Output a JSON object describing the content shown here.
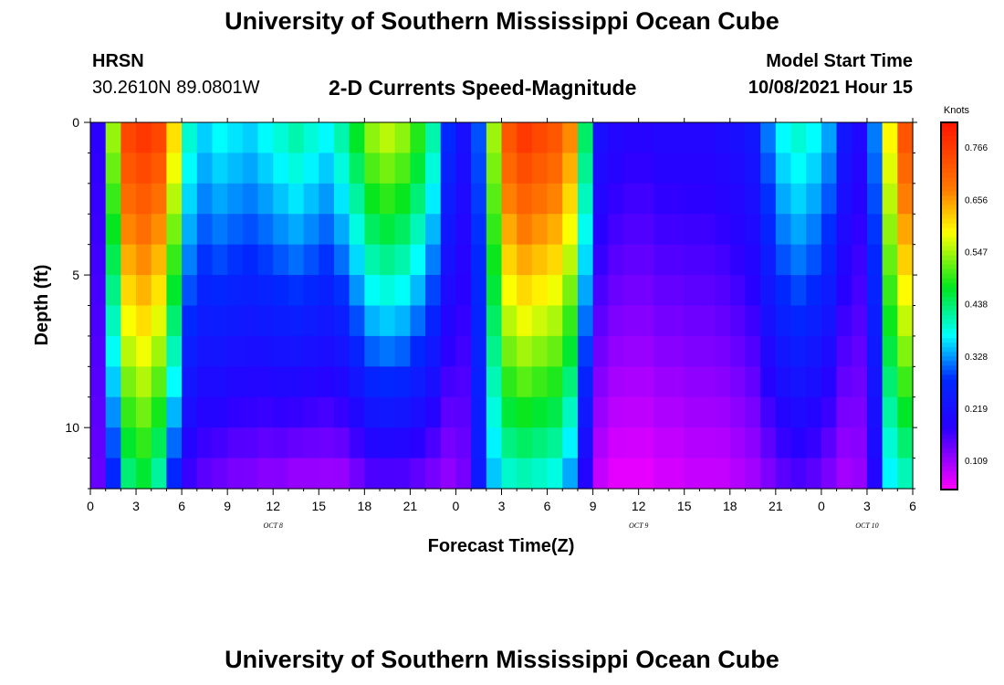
{
  "header": {
    "title_top": "University of Southern Mississippi Ocean Cube",
    "station": "HRSN",
    "coords": "30.2610N  89.0801W",
    "subtitle": "2-D Currents Speed-Magnitude",
    "model_start_label": "Model Start Time",
    "model_start_value": "10/08/2021 Hour 15"
  },
  "footer": {
    "title_bottom": "University of Southern Mississippi Ocean Cube"
  },
  "chart_data": {
    "type": "heatmap",
    "xlabel": "Forecast Time(Z)",
    "ylabel": "Depth (ft)",
    "x_ticks": [
      "0",
      "3",
      "6",
      "9",
      "12",
      "15",
      "18",
      "21",
      "0",
      "3",
      "6",
      "9",
      "12",
      "15",
      "18",
      "21",
      "0",
      "3",
      "6"
    ],
    "day_labels": [
      {
        "label": "OCT 8",
        "at_hour": 12
      },
      {
        "label": "OCT 9",
        "at_hour": 36
      },
      {
        "label": "OCT 10",
        "at_hour": 51
      }
    ],
    "y_ticks": [
      "0",
      "5",
      "10"
    ],
    "yticks_values": [
      0,
      5,
      10
    ],
    "ylim": [
      0,
      12
    ],
    "xlim_hours": [
      0,
      54
    ],
    "colorbar": {
      "unit": "Knots",
      "tick_labels": [
        "0.766",
        "0.656",
        "0.547",
        "0.438",
        "0.328",
        "0.219",
        "0.109"
      ],
      "range": [
        0.05,
        0.82
      ]
    },
    "time_hours": [
      0,
      1,
      2,
      3,
      4,
      5,
      6,
      7,
      8,
      9,
      10,
      11,
      12,
      13,
      14,
      15,
      16,
      17,
      18,
      19,
      20,
      21,
      22,
      23,
      24,
      25,
      26,
      27,
      28,
      29,
      30,
      31,
      32,
      33,
      34,
      35,
      36,
      37,
      38,
      39,
      40,
      41,
      42,
      43,
      44,
      45,
      46,
      47,
      48,
      49,
      50,
      51,
      52,
      53,
      54
    ],
    "depth_ft": [
      0,
      1,
      2,
      3,
      4,
      5,
      6,
      7,
      8,
      9,
      10,
      11,
      12
    ],
    "profiles": {
      "surface_speed_knots": [
        0.18,
        0.55,
        0.76,
        0.78,
        0.76,
        0.62,
        0.4,
        0.36,
        0.38,
        0.37,
        0.36,
        0.38,
        0.4,
        0.42,
        0.4,
        0.38,
        0.42,
        0.48,
        0.55,
        0.57,
        0.55,
        0.5,
        0.42,
        0.28,
        0.22,
        0.3,
        0.55,
        0.74,
        0.78,
        0.76,
        0.74,
        0.68,
        0.45,
        0.22,
        0.2,
        0.19,
        0.19,
        0.2,
        0.2,
        0.2,
        0.2,
        0.21,
        0.22,
        0.24,
        0.32,
        0.38,
        0.4,
        0.38,
        0.34,
        0.24,
        0.2,
        0.32,
        0.6,
        0.74,
        0.76
      ],
      "bottom_speed_knots": [
        0.14,
        0.26,
        0.42,
        0.45,
        0.4,
        0.26,
        0.16,
        0.14,
        0.13,
        0.12,
        0.12,
        0.11,
        0.11,
        0.1,
        0.1,
        0.1,
        0.1,
        0.12,
        0.14,
        0.14,
        0.14,
        0.13,
        0.12,
        0.11,
        0.13,
        0.24,
        0.34,
        0.38,
        0.39,
        0.38,
        0.37,
        0.32,
        0.18,
        0.08,
        0.06,
        0.06,
        0.06,
        0.07,
        0.07,
        0.08,
        0.08,
        0.08,
        0.09,
        0.1,
        0.12,
        0.14,
        0.15,
        0.14,
        0.12,
        0.1,
        0.11,
        0.19,
        0.36,
        0.39,
        0.4
      ]
    }
  }
}
